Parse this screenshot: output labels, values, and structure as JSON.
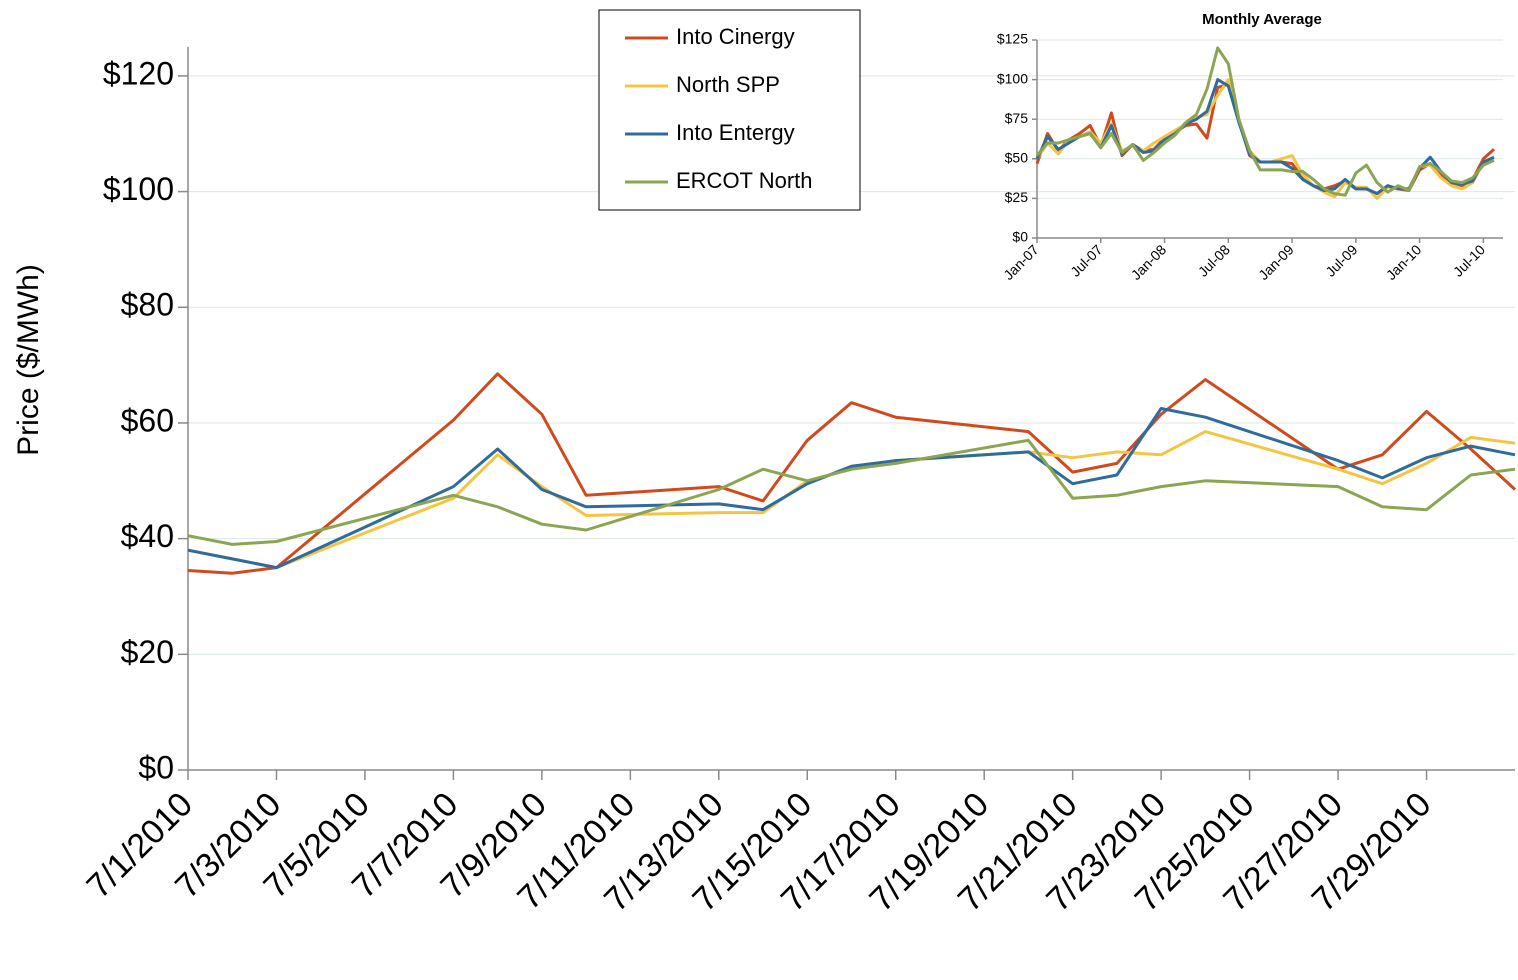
{
  "chart_data": [
    {
      "type": "line",
      "y_label": "Price ($/MWh)",
      "x": [
        "7/1/2010",
        "7/2/2010",
        "7/3/2010",
        "7/7/2010",
        "7/8/2010",
        "7/9/2010",
        "7/10/2010",
        "7/13/2010",
        "7/14/2010",
        "7/15/2010",
        "7/16/2010",
        "7/17/2010",
        "7/20/2010",
        "7/21/2010",
        "7/22/2010",
        "7/23/2010",
        "7/24/2010",
        "7/27/2010",
        "7/28/2010",
        "7/29/2010",
        "7/30/2010",
        "7/31/2010"
      ],
      "xlim": [
        "7/1/2010",
        "7/31/2010"
      ],
      "xticks": [
        "7/1/2010",
        "7/3/2010",
        "7/5/2010",
        "7/7/2010",
        "7/9/2010",
        "7/11/2010",
        "7/13/2010",
        "7/15/2010",
        "7/17/2010",
        "7/19/2010",
        "7/21/2010",
        "7/23/2010",
        "7/25/2010",
        "7/27/2010",
        "7/29/2010"
      ],
      "ylim": [
        0,
        125
      ],
      "yticks": [
        {
          "value": 0,
          "label": "$0"
        },
        {
          "value": 20,
          "label": "$20"
        },
        {
          "value": 40,
          "label": "$40"
        },
        {
          "value": 60,
          "label": "$60"
        },
        {
          "value": 80,
          "label": "$80"
        },
        {
          "value": 100,
          "label": "$100"
        },
        {
          "value": 120,
          "label": "$120"
        }
      ],
      "grid": true,
      "legend": "top",
      "series": [
        {
          "name": "Into Cinergy",
          "color": "#d04a1e",
          "values": [
            34.5,
            34,
            35,
            60.5,
            68.5,
            61.5,
            47.5,
            49,
            46.5,
            57,
            63.5,
            61,
            58.5,
            51.5,
            53,
            61.5,
            67.5,
            52,
            54.5,
            62,
            55.5,
            48.5
          ]
        },
        {
          "name": "North SPP",
          "color": "#f6c443",
          "values": [
            38,
            36.5,
            35,
            47,
            54.5,
            49,
            44,
            44.5,
            44.5,
            50,
            52,
            53.5,
            55,
            54,
            55,
            54.5,
            58.5,
            52,
            49.5,
            53,
            57.5,
            56.5
          ]
        },
        {
          "name": "Into Entergy",
          "color": "#2f6b9d",
          "values": [
            38,
            36.5,
            35,
            49,
            55.5,
            48.5,
            45.5,
            46,
            45,
            49.5,
            52.5,
            53.5,
            55,
            49.5,
            51,
            62.5,
            61,
            53.5,
            50.5,
            54,
            56,
            54.5
          ]
        },
        {
          "name": "ERCOT North",
          "color": "#8ca552",
          "values": [
            40.5,
            39,
            39.5,
            47.5,
            45.5,
            42.5,
            41.5,
            48.5,
            52,
            50,
            52,
            53,
            57,
            47,
            47.5,
            49,
            50,
            49,
            45.5,
            45,
            51,
            52
          ]
        }
      ]
    },
    {
      "type": "line",
      "title": "Monthly Average",
      "x": [
        "Jan-07",
        "Feb-07",
        "Mar-07",
        "Apr-07",
        "May-07",
        "Jun-07",
        "Jul-07",
        "Aug-07",
        "Sep-07",
        "Oct-07",
        "Nov-07",
        "Dec-07",
        "Jan-08",
        "Feb-08",
        "Mar-08",
        "Apr-08",
        "May-08",
        "Jun-08",
        "Jul-08",
        "Aug-08",
        "Sep-08",
        "Oct-08",
        "Nov-08",
        "Dec-08",
        "Jan-09",
        "Feb-09",
        "Mar-09",
        "Apr-09",
        "May-09",
        "Jun-09",
        "Jul-09",
        "Aug-09",
        "Sep-09",
        "Oct-09",
        "Nov-09",
        "Dec-09",
        "Jan-10",
        "Feb-10",
        "Mar-10",
        "Apr-10",
        "May-10",
        "Jun-10",
        "Jul-10",
        "Aug-10"
      ],
      "xticks": [
        "Jan-07",
        "Jul-07",
        "Jan-08",
        "Jul-08",
        "Jan-09",
        "Jul-09",
        "Jan-10",
        "Jul-10"
      ],
      "ylim": [
        0,
        125
      ],
      "yticks": [
        {
          "value": 0,
          "label": "$0"
        },
        {
          "value": 25,
          "label": "$25"
        },
        {
          "value": 50,
          "label": "$50"
        },
        {
          "value": 75,
          "label": "$75"
        },
        {
          "value": 100,
          "label": "$100"
        },
        {
          "value": 125,
          "label": "$125"
        }
      ],
      "grid": true,
      "series": [
        {
          "color": "#d04a1e",
          "values": [
            47,
            66,
            55,
            62,
            66,
            71,
            58,
            79,
            52,
            59,
            55,
            56,
            63,
            67,
            71,
            72,
            63,
            95,
            97,
            74,
            52,
            48,
            48,
            48,
            47,
            38,
            33,
            31,
            33,
            36,
            31,
            31,
            28,
            33,
            31,
            30,
            43,
            47,
            40,
            35,
            33,
            37,
            50,
            56
          ]
        },
        {
          "color": "#f6c443",
          "values": [
            50,
            60,
            53,
            62,
            64,
            67,
            60,
            72,
            55,
            58,
            55,
            60,
            64,
            68,
            72,
            76,
            78,
            90,
            100,
            74,
            55,
            48,
            48,
            50,
            52,
            40,
            33,
            29,
            26,
            35,
            32,
            32,
            25,
            32,
            31,
            31,
            45,
            46,
            38,
            33,
            31,
            35,
            48,
            49
          ]
        },
        {
          "color": "#2f6b9d",
          "values": [
            50,
            64,
            56,
            60,
            64,
            66,
            57,
            71,
            53,
            59,
            54,
            55,
            62,
            66,
            72,
            75,
            80,
            100,
            96,
            73,
            53,
            48,
            48,
            48,
            44,
            37,
            33,
            30,
            31,
            37,
            31,
            31,
            28,
            33,
            31,
            31,
            44,
            51,
            42,
            35,
            34,
            36,
            48,
            51
          ]
        },
        {
          "color": "#8ca552",
          "values": [
            52,
            60,
            60,
            62,
            64,
            66,
            57,
            66,
            54,
            59,
            49,
            54,
            60,
            65,
            73,
            78,
            94,
            120,
            110,
            75,
            55,
            43,
            43,
            43,
            42,
            42,
            37,
            31,
            28,
            27,
            41,
            46,
            35,
            29,
            33,
            30,
            45,
            47,
            42,
            36,
            35,
            38,
            46,
            49
          ]
        }
      ]
    }
  ]
}
